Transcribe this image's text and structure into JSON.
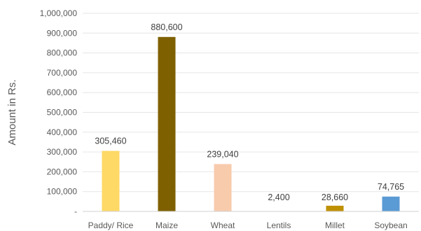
{
  "chart_data": {
    "type": "bar",
    "title": "",
    "xlabel": "",
    "ylabel": "Amount in Rs.",
    "ylim": [
      0,
      1000000
    ],
    "yticks": [
      {
        "value": 0,
        "label": "-"
      },
      {
        "value": 100000,
        "label": "100,000"
      },
      {
        "value": 200000,
        "label": "200,000"
      },
      {
        "value": 300000,
        "label": "300,000"
      },
      {
        "value": 400000,
        "label": "400,000"
      },
      {
        "value": 500000,
        "label": "500,000"
      },
      {
        "value": 600000,
        "label": "600,000"
      },
      {
        "value": 700000,
        "label": "700,000"
      },
      {
        "value": 800000,
        "label": "800,000"
      },
      {
        "value": 900000,
        "label": "900,000"
      },
      {
        "value": 1000000,
        "label": "1,000,000"
      }
    ],
    "categories": [
      "Paddy/ Rice",
      "Maize",
      "Wheat",
      "Lentils",
      "Millet",
      "Soybean"
    ],
    "values": [
      305460,
      880600,
      239040,
      2400,
      28660,
      74765
    ],
    "value_labels": [
      "305,460",
      "880,600",
      "239,040",
      "2,400",
      "28,660",
      "74,765"
    ],
    "colors": [
      "#FFD966",
      "#7F6000",
      "#F8CBAD",
      "#FFFFFF",
      "#BF9000",
      "#5B9BD5"
    ],
    "grid": true,
    "legend": "none"
  }
}
